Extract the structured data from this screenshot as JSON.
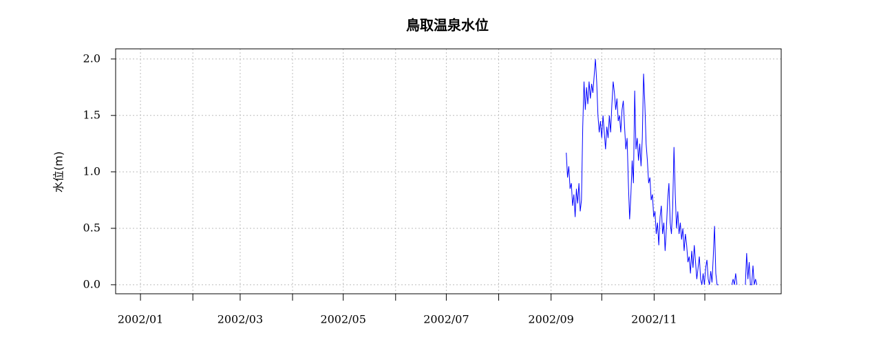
{
  "chart_data": {
    "type": "line",
    "title": "鳥取温泉水位",
    "y_label": "水位(m)",
    "x": [
      252,
      252.75,
      253.5,
      254.25,
      255,
      255.75,
      256.5,
      257.25,
      258,
      258.75,
      259.5,
      260.25,
      261,
      261.75,
      262.5,
      263.25,
      264,
      264.75,
      265.5,
      266.25,
      267,
      267.75,
      268.5,
      269.25,
      270,
      270.75,
      271.5,
      272.25,
      273,
      273.75,
      274.5,
      275.25,
      276,
      276.75,
      277.5,
      278.25,
      279,
      279.75,
      280.5,
      281.25,
      282,
      282.75,
      283.5,
      284.25,
      285,
      285.75,
      286.5,
      287.25,
      288,
      288.75,
      289.5,
      290.25,
      291,
      291.75,
      292.5,
      293.25,
      294,
      294.75,
      295.5,
      296.25,
      297,
      297.75,
      298.5,
      299.25,
      300,
      300.75,
      301.5,
      302.25,
      303,
      303.75,
      304.5,
      305.25,
      306,
      306.75,
      307.5,
      308.25,
      309,
      309.75,
      310.5,
      311.25,
      312,
      312.75,
      313.5,
      314.25,
      315,
      315.75,
      316.5,
      317.25,
      318,
      318.75,
      319.5,
      320.25,
      321,
      321.75,
      322.5,
      323.25,
      324,
      324.75,
      325.5,
      326.25,
      327,
      327.75,
      328.5,
      329.25,
      330,
      330.75,
      331.5,
      332.25,
      333,
      333.75,
      334.5,
      335.25,
      336,
      336.75,
      337.5,
      338.25,
      339,
      339.75,
      340.5,
      341.25,
      342,
      346,
      350,
      350.75,
      351.5,
      352.25,
      353,
      355,
      358,
      358.75,
      359.5,
      360.25,
      361,
      361.75,
      362.5,
      363.25,
      364,
      364.75
    ],
    "values": [
      1.17,
      0.95,
      1.05,
      0.85,
      0.9,
      0.7,
      0.8,
      0.6,
      0.85,
      0.72,
      0.9,
      0.65,
      0.75,
      1.4,
      1.8,
      1.55,
      1.75,
      1.6,
      1.8,
      1.65,
      1.78,
      1.7,
      1.85,
      2.0,
      1.8,
      1.5,
      1.35,
      1.45,
      1.3,
      1.5,
      1.35,
      1.2,
      1.4,
      1.3,
      1.5,
      1.35,
      1.6,
      1.8,
      1.7,
      1.55,
      1.65,
      1.45,
      1.5,
      1.35,
      1.55,
      1.63,
      1.4,
      1.2,
      1.3,
      0.9,
      0.58,
      0.8,
      1.1,
      0.9,
      1.72,
      1.2,
      1.3,
      1.1,
      1.25,
      1.05,
      1.3,
      1.87,
      1.6,
      1.25,
      1.1,
      0.9,
      0.95,
      0.75,
      0.8,
      0.6,
      0.65,
      0.45,
      0.55,
      0.35,
      0.6,
      0.7,
      0.45,
      0.55,
      0.3,
      0.5,
      0.75,
      0.9,
      0.55,
      0.45,
      0.7,
      1.22,
      0.8,
      0.5,
      0.65,
      0.45,
      0.55,
      0.4,
      0.5,
      0.3,
      0.45,
      0.35,
      0.2,
      0.25,
      0.1,
      0.3,
      0.15,
      0.35,
      0.2,
      0.05,
      0.15,
      0.25,
      0.05,
      0.0,
      0.1,
      0.0,
      0.15,
      0.22,
      0.05,
      0.0,
      0.12,
      0.02,
      0.25,
      0.52,
      0.1,
      0.0,
      0.0,
      null,
      0.0,
      0.05,
      0.0,
      0.1,
      0.0,
      null,
      0.0,
      0.28,
      0.05,
      0.2,
      0.0,
      0.0,
      0.17,
      0.0,
      0.05,
      0.0
    ],
    "color": "#0000ff",
    "xlim": [
      -14.7,
      379.2
    ],
    "xticks": [
      {
        "value": 0,
        "label": "2002/01"
      },
      {
        "value": 31,
        "label": null
      },
      {
        "value": 59,
        "label": "2002/03"
      },
      {
        "value": 90,
        "label": null
      },
      {
        "value": 120,
        "label": "2002/05"
      },
      {
        "value": 151,
        "label": null
      },
      {
        "value": 181,
        "label": "2002/07"
      },
      {
        "value": 212,
        "label": null
      },
      {
        "value": 243,
        "label": "2002/09"
      },
      {
        "value": 273,
        "label": null
      },
      {
        "value": 304,
        "label": "2002/11"
      },
      {
        "value": 334,
        "label": null
      }
    ],
    "ylim": [
      -0.08,
      2.09
    ],
    "yticks": [
      {
        "value": 0,
        "label": "0.0"
      },
      0.5,
      {
        "value": 1,
        "label": "1.0"
      },
      1.5,
      {
        "value": 2,
        "label": "2.0"
      }
    ],
    "grid": true
  }
}
